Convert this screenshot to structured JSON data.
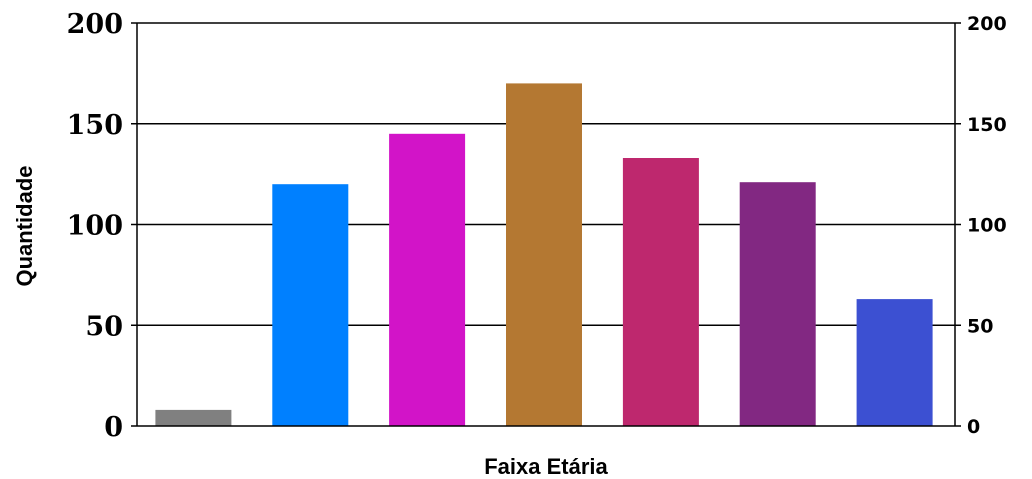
{
  "chart_data": {
    "type": "bar",
    "categories": [
      "",
      "",
      "",
      "",
      "",
      "",
      ""
    ],
    "values": [
      8,
      120,
      145,
      170,
      133,
      121,
      63
    ],
    "colors": [
      "#808080",
      "#0080FF",
      "#D214C8",
      "#B47832",
      "#BE286E",
      "#822882",
      "#3C50D2"
    ],
    "title": "",
    "xlabel": "Faixa Etária",
    "ylabel": "Quantidade",
    "ylim": [
      0,
      200
    ],
    "yticks": [
      0,
      50,
      100,
      150,
      200
    ],
    "secondary_y_axis": true,
    "grid": true,
    "legend": "none"
  }
}
